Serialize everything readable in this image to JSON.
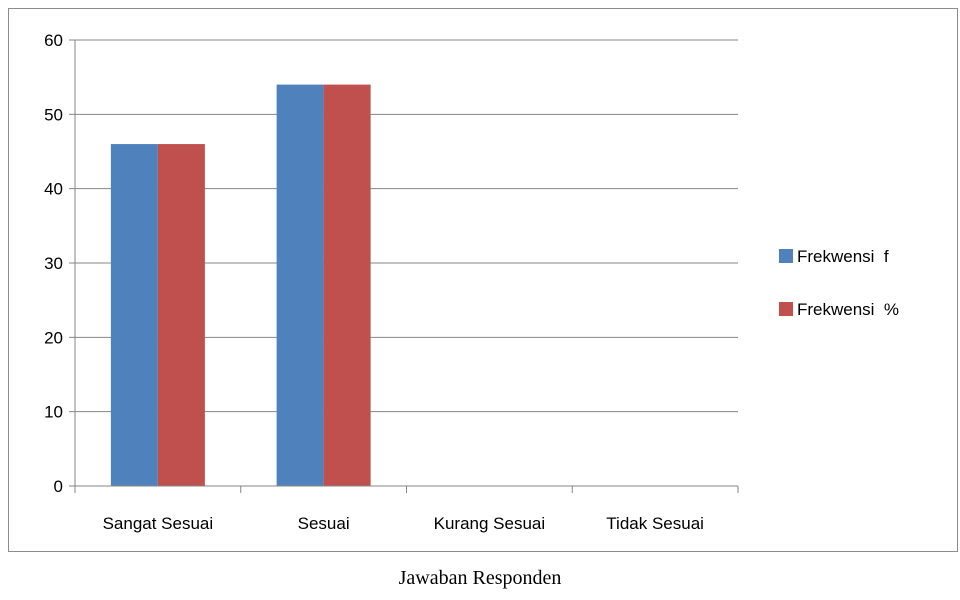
{
  "chart_data": {
    "type": "bar",
    "categories": [
      "Sangat Sesuai",
      "Sesuai",
      "Kurang Sesuai",
      "Tidak Sesuai"
    ],
    "series": [
      {
        "name": "Frekwensi  f",
        "values": [
          46,
          54,
          0,
          0
        ],
        "color": "#4f81bd"
      },
      {
        "name": "Frekwensi  %",
        "values": [
          46,
          54,
          0,
          0
        ],
        "color": "#c0504d"
      }
    ],
    "yticks": [
      0,
      10,
      20,
      30,
      40,
      50,
      60
    ],
    "ylim": [
      0,
      60
    ],
    "xlabel": "Jawaban Responden",
    "ylabel": "",
    "title": "",
    "grid": true,
    "legend_position": "right"
  }
}
